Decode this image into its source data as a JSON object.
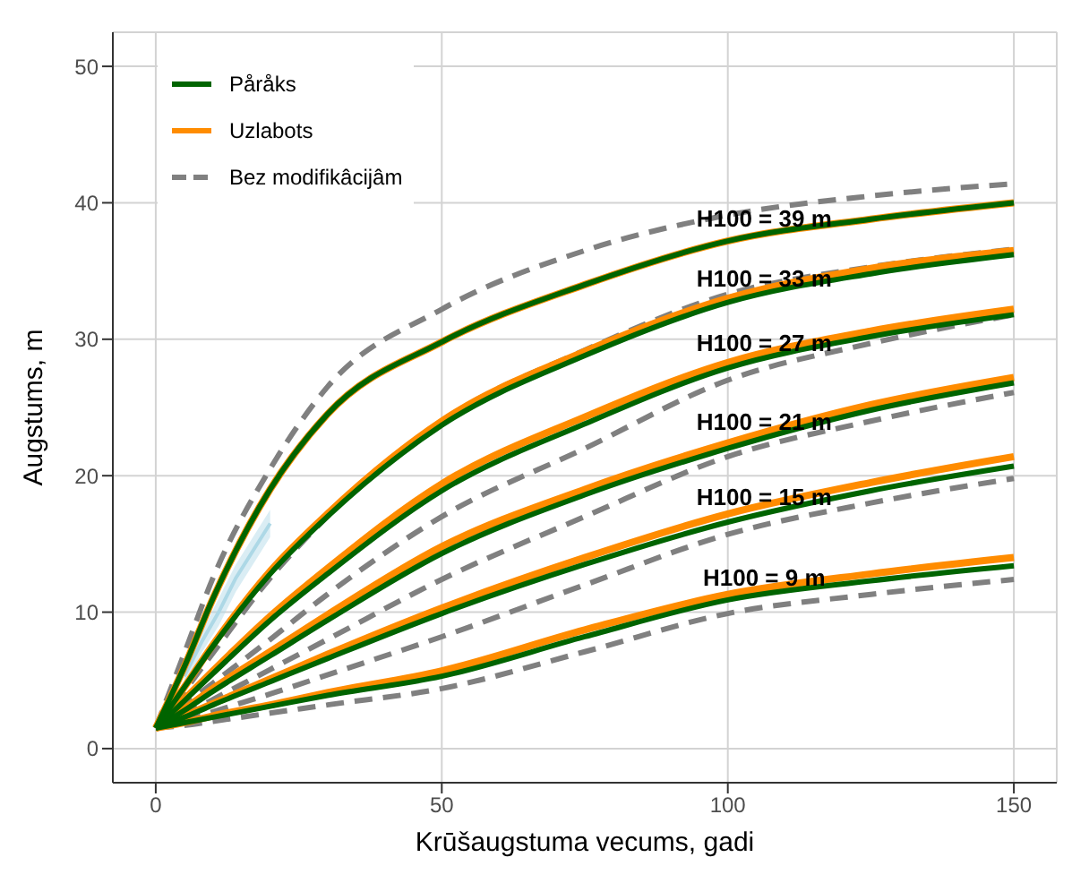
{
  "chart_data": {
    "type": "line",
    "xlabel": "Krūšaugstuma vecums, gadi",
    "ylabel": "Augstums, m",
    "xlim": [
      -7.5,
      157.5
    ],
    "xticks": [
      0,
      50,
      100,
      150
    ],
    "ylim": [
      -2.5,
      52.5
    ],
    "yticks": [
      0,
      10,
      20,
      30,
      40,
      50
    ],
    "grid": true,
    "legend": "top left",
    "marker": "none",
    "x": [
      0,
      5,
      10,
      20,
      30,
      50,
      75,
      100,
      125,
      150
    ],
    "series": [
      {
        "name": "Påråks",
        "color": "#006400",
        "values": [
          1.5,
          6,
          11,
          19,
          24.5,
          29.8,
          34,
          37.2,
          38.8,
          40.0
        ]
      },
      {
        "color": "#006400",
        "values": [
          1.5,
          4.5,
          7.5,
          12.8,
          17,
          23.7,
          28.8,
          32.7,
          34.8,
          36.2
        ]
      },
      {
        "color": "#006400",
        "values": [
          1.5,
          3.5,
          5.5,
          9.4,
          12.8,
          18.9,
          23.8,
          27.9,
          30.2,
          31.8
        ]
      },
      {
        "color": "#006400",
        "values": [
          1.5,
          2.8,
          4.2,
          6.8,
          9.4,
          14.3,
          18.6,
          22.0,
          24.8,
          26.8
        ]
      },
      {
        "color": "#006400",
        "values": [
          1.5,
          2.3,
          3.2,
          4.9,
          6.6,
          9.9,
          13.5,
          16.6,
          18.9,
          20.7
        ]
      },
      {
        "color": "#006400",
        "values": [
          1.5,
          1.9,
          2.3,
          3.1,
          3.9,
          5.3,
          8.2,
          10.9,
          12.3,
          13.4
        ]
      },
      {
        "name": "Uzlabots",
        "color": "#ff8c00",
        "values": [
          1.5,
          6,
          11,
          19,
          24.5,
          29.8,
          34,
          37.2,
          38.8,
          40.0
        ]
      },
      {
        "color": "#ff8c00",
        "values": [
          1.5,
          4.5,
          7.6,
          13,
          17.2,
          24,
          29.1,
          33,
          35.2,
          36.5
        ]
      },
      {
        "color": "#ff8c00",
        "values": [
          1.5,
          3.6,
          5.7,
          9.7,
          13.2,
          19.4,
          24.3,
          28.3,
          30.6,
          32.2
        ]
      },
      {
        "color": "#ff8c00",
        "values": [
          1.5,
          2.9,
          4.4,
          7.1,
          9.8,
          14.8,
          19,
          22.4,
          25.2,
          27.2
        ]
      },
      {
        "color": "#ff8c00",
        "values": [
          1.5,
          2.4,
          3.3,
          5.1,
          6.9,
          10.3,
          14,
          17.2,
          19.5,
          21.4
        ]
      },
      {
        "color": "#ff8c00",
        "values": [
          1.5,
          1.9,
          2.4,
          3.2,
          4.1,
          5.7,
          8.7,
          11.3,
          12.8,
          14.0
        ]
      },
      {
        "name": "Bez modifikâcijâm",
        "color": "#808080",
        "line_style": "dashed",
        "values": [
          1.5,
          7,
          12.5,
          20.5,
          26.5,
          32.2,
          36.5,
          39.1,
          40.5,
          41.4
        ]
      },
      {
        "color": "#808080",
        "line_style": "dashed",
        "values": [
          1.5,
          4.2,
          7,
          12.5,
          17,
          24,
          29.2,
          33.3,
          35.3,
          36.6
        ]
      },
      {
        "color": "#808080",
        "line_style": "dashed",
        "values": [
          1.5,
          3.2,
          4.8,
          8,
          11.3,
          17,
          22,
          27,
          29.7,
          31.8
        ]
      },
      {
        "color": "#808080",
        "line_style": "dashed",
        "values": [
          1.5,
          2.5,
          3.6,
          5.8,
          8,
          12.4,
          17,
          21.4,
          24,
          26.1
        ]
      },
      {
        "color": "#808080",
        "line_style": "dashed",
        "values": [
          1.5,
          2,
          2.7,
          4,
          5.4,
          8.2,
          12,
          15.7,
          18,
          19.8
        ]
      },
      {
        "color": "#808080",
        "line_style": "dashed",
        "values": [
          1.5,
          1.7,
          2,
          2.6,
          3.2,
          4.4,
          7.1,
          9.9,
          11.3,
          12.4
        ]
      },
      {
        "color": "#add8e6",
        "x": [
          5,
          8,
          11,
          14,
          17,
          20
        ],
        "values": [
          5.3,
          7.8,
          10,
          12.5,
          14.5,
          16.5
        ],
        "lower": [
          4.5,
          7,
          9,
          11.5,
          13.5,
          15.5
        ],
        "upper": [
          6,
          8.5,
          11,
          13.5,
          15.5,
          17.5
        ]
      }
    ],
    "annotations": [
      "H100 = 39 m",
      "H100 = 33 m",
      "H100 = 27 m",
      "H100 = 21 m",
      "H100 = 15 m",
      "H100 = 9 m"
    ]
  }
}
